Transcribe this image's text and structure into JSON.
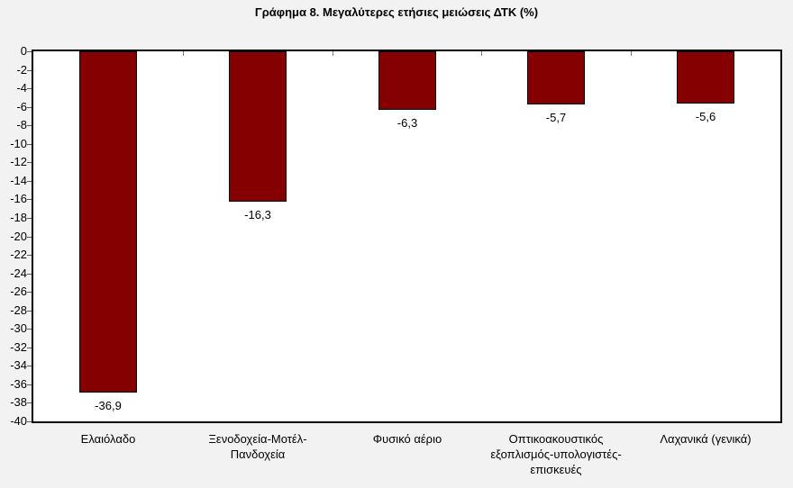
{
  "title": "Γράφημα 8. Μεγαλύτερες ετήσιες μειώσεις ΔΤΚ (%)",
  "chart_data": {
    "type": "bar",
    "title": "Γράφημα 8. Μεγαλύτερες ετήσιες μειώσεις ΔΤΚ (%)",
    "categories": [
      "Ελαιόλαδο",
      "Ξενοδοχεία-Μοτέλ-Πανδοχεία",
      "Φυσικό αέριο",
      "Οπτικοακουστικός εξοπλισμός-υπολογιστές-επισκευές",
      "Λαχανικά (γενικά)"
    ],
    "values": [
      -36.9,
      -16.3,
      -6.3,
      -5.7,
      -5.6
    ],
    "value_labels": [
      "-36,9",
      "-16,3",
      "-6,3",
      "-5,7",
      "-5,6"
    ],
    "xlabel": "",
    "ylabel": "",
    "ylim": [
      -40,
      0
    ],
    "ytick_step": 2,
    "grid": false,
    "legend": "none",
    "colors": {
      "bar_fill": "#850101",
      "bar_border": "#000000",
      "plot_background": "#ffffff",
      "page_background": "#f2f2f2",
      "axis_line": "#000000",
      "tick_mark": "#595959",
      "text": "#000000"
    }
  }
}
